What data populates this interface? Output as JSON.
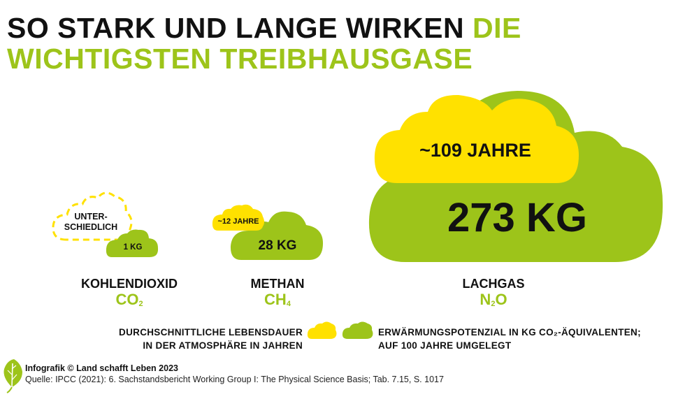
{
  "title": {
    "part_dark": "SO STARK UND LANGE WIRKEN",
    "part_green_1": "DIE",
    "part_green_2": "WICHTIGSTEN TREIBHAUSGASE"
  },
  "gases": [
    {
      "name": "KOHLENDIOXID",
      "formula_main": "CO",
      "formula_sub": "2",
      "formula_tail": "",
      "lifetime": "UNTER-\nSCHIEDLICH",
      "lifetime_line1": "UNTER-",
      "lifetime_line2": "SCHIEDLICH",
      "potential": "1 KG"
    },
    {
      "name": "METHAN",
      "formula_main": "CH",
      "formula_sub": "4",
      "formula_tail": "",
      "lifetime": "~12 JAHRE",
      "potential": "28 KG"
    },
    {
      "name": "LACHGAS",
      "formula_main": "N",
      "formula_sub": "2",
      "formula_tail": "O",
      "lifetime": "~109 JAHRE",
      "potential": "273 KG"
    }
  ],
  "legend": {
    "lifetime_line1": "DURCHSCHNITTLICHE LEBENSDAUER",
    "lifetime_line2": "IN DER ATMOSPHÄRE IN JAHREN",
    "potential_line1": "ERWÄRMUNGSPOTENZIAL IN KG CO₂-ÄQUIVALENTEN;",
    "potential_line2": "AUF 100 JAHRE UMGELEGT"
  },
  "footer": {
    "credit": "Infografik © Land schafft Leben 2023",
    "source": "Quelle: IPCC (2021): 6. Sachstandsbericht Working Group I: The Physical Science Basis; Tab. 7.15, S. 1017"
  },
  "colors": {
    "green": "#9dc41a",
    "yellow": "#ffe100",
    "text": "#111111"
  },
  "icons": {
    "logo": "leaf-icon",
    "lifetime": "cloud-icon",
    "potential": "cloud-icon"
  }
}
